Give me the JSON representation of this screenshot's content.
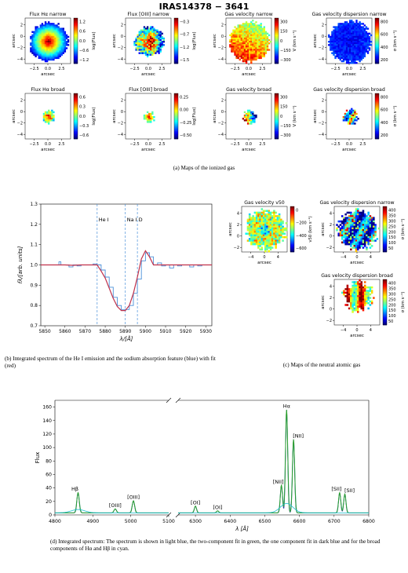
{
  "figure_title": "IRAS14378 − 3641",
  "panel_a": {
    "caption": "(a) Maps of the ionized gas",
    "maps": [
      {
        "title": "Flux Hα narrow",
        "cbar_label": "log(Flux)",
        "cbar_ticks": [
          "1.2",
          "0.6",
          "0.0",
          "−0.6",
          "−1.2"
        ],
        "palette": "jet",
        "show_ylabel": true
      },
      {
        "title": "Flux [OIII] narrow",
        "cbar_label": "log(Flux)",
        "cbar_ticks": [
          "−0.3",
          "−0.7",
          "−1.2",
          "−1.5"
        ],
        "palette": "jet",
        "show_ylabel": true
      },
      {
        "title": "Gas velocity narrow",
        "cbar_label": "V (km s⁻¹)",
        "cbar_ticks": [
          "300",
          "150",
          "0",
          "−150",
          "−300"
        ],
        "palette": "jet",
        "show_ylabel": true
      },
      {
        "title": "Gas velocity dispersion narrow",
        "cbar_label": "σ (km s⁻¹)",
        "cbar_ticks": [
          "800",
          "600",
          "400",
          "200"
        ],
        "palette": "jet",
        "show_ylabel": true
      },
      {
        "title": "Flux Hα broad",
        "cbar_label": "log(Flux)",
        "cbar_ticks": [
          "0.6",
          "0.3",
          "0.0",
          "−0.3",
          "−0.6"
        ],
        "palette": "jet",
        "show_ylabel": true
      },
      {
        "title": "Flux [OIII] broad",
        "cbar_label": "log(Flux)",
        "cbar_ticks": [
          "0.25",
          "0.00",
          "−0.25",
          "−0.50"
        ],
        "palette": "jet",
        "show_ylabel": true
      },
      {
        "title": "Gas velocity broad",
        "cbar_label": "V (km s⁻¹)",
        "cbar_ticks": [
          "300",
          "150",
          "0",
          "−150",
          "−300"
        ],
        "palette": "jet",
        "show_ylabel": true
      },
      {
        "title": "Gas velocity dispersion broad",
        "cbar_label": "σ (km s⁻¹)",
        "cbar_ticks": [
          "800",
          "600",
          "400",
          "200"
        ],
        "palette": "jet",
        "show_ylabel": true
      }
    ],
    "xlabel": "arcsec",
    "ylabel": "arcsec",
    "xticks": [
      "−2.5",
      "0.0",
      "2.5"
    ],
    "yticks": [
      "2",
      "0",
      "−2",
      "−4"
    ]
  },
  "panel_b": {
    "caption": "(b) Integrated spectrum of the He I emission and the sodium absorption feature (blue) with fit (red)",
    "xlabel": "λ/[Å]",
    "ylabel": "fλ/[arb. units]",
    "line_labels": [
      "He I",
      "Na I D"
    ],
    "colors": {
      "data": "#4a90d9",
      "fit": "#c0304a",
      "lines": "#4a90d9"
    }
  },
  "panel_c": {
    "caption": "(c) Maps of the neutral atomic gas",
    "maps": [
      {
        "title": "Gas velocity v50",
        "cbar_label": "v50 (km s⁻¹)",
        "cbar_ticks": [
          "0",
          "−200",
          "−400",
          "−600"
        ]
      },
      {
        "title": "Gas velocity dispersion narrow",
        "cbar_label": "σ (km s⁻¹)",
        "cbar_ticks": [
          "400",
          "350",
          "300",
          "250",
          "200",
          "150",
          "100",
          "50"
        ]
      },
      {
        "title": "Gas velocity dispersion broad",
        "cbar_label": "σ (km s⁻¹)",
        "cbar_ticks": [
          "400",
          "350",
          "300",
          "250",
          "200",
          "150",
          "100",
          "50"
        ]
      }
    ],
    "xlabel": "arcsec",
    "ylabel": "arcsec",
    "xticks": [
      "−4",
      "−2",
      "0",
      "2",
      "4"
    ],
    "yticks": [
      "4",
      "2",
      "0",
      "−2",
      "−4"
    ]
  },
  "panel_d": {
    "caption": "(d) Integrated spectrum: The spectrum is shown in light blue, the two-component fit in green, the one component fit in dark blue and for the broad components of Hα and Hβ in cyan.",
    "ylabel": "Flux",
    "xlabel": "λ [Å]",
    "yticks": [
      "0",
      "20",
      "40",
      "60",
      "80",
      "100",
      "120",
      "140",
      "160"
    ],
    "xticks_left": [
      "4800",
      "4900",
      "5000",
      "5100"
    ],
    "xticks_right": [
      "6300",
      "6400",
      "6500",
      "6600",
      "6700",
      "6800"
    ],
    "line_labels": [
      "Hβ",
      "[OIII]",
      "[OIII]",
      "[OI]",
      "[OI]",
      "[NII]",
      "Hα",
      "[NII]",
      "[SII]",
      "[SII]"
    ]
  },
  "chart_data": [
    {
      "type": "line",
      "title": "",
      "xlabel": "λ/[Å]",
      "ylabel": "fλ/[arb. units]",
      "xlim": [
        5848,
        5933
      ],
      "ylim": [
        0.7,
        1.3
      ],
      "xticks": [
        5850,
        5860,
        5870,
        5880,
        5890,
        5900,
        5910,
        5920,
        5930
      ],
      "yticks": [
        0.7,
        0.8,
        0.9,
        1.0,
        1.1,
        1.2,
        1.3
      ],
      "vlines": [
        5876,
        5890,
        5896
      ],
      "series": [
        {
          "name": "",
          "x": [
            5848,
            5856,
            5857,
            5858,
            5860,
            5862,
            5864,
            5866,
            5868,
            5870,
            5872,
            5874,
            5876,
            5878,
            5880,
            5882,
            5884,
            5886,
            5888,
            5890,
            5892,
            5894,
            5896,
            5898,
            5900,
            5902,
            5904,
            5906,
            5908,
            5910,
            5912,
            5914,
            5916,
            5918,
            5920,
            5922,
            5924,
            5926,
            5928,
            5930,
            5933
          ],
          "y": [
            1.0,
            1.0,
            1.015,
            1.0,
            1.0,
            0.99,
            1.0,
            0.995,
            1.0,
            1.0,
            1.0,
            1.005,
            1.0,
            0.975,
            0.94,
            0.89,
            0.84,
            0.8,
            0.78,
            0.78,
            0.8,
            0.86,
            0.93,
            1.02,
            1.06,
            1.04,
            1.0,
            1.01,
            0.995,
            1.0,
            0.985,
            1.0,
            0.995,
            1.0,
            1.0,
            0.99,
            1.0,
            0.995,
            1.0,
            1.0,
            1.0
          ]
        },
        {
          "name": "",
          "x": [
            5848,
            5856,
            5860,
            5864,
            5868,
            5872,
            5876,
            5878,
            5880,
            5882,
            5884,
            5886,
            5888,
            5890,
            5892,
            5894,
            5896,
            5898,
            5900,
            5902,
            5904,
            5906,
            5910,
            5916,
            5922,
            5928,
            5933
          ],
          "y": [
            1.0,
            1.0,
            1.0,
            0.998,
            1.0,
            1.0,
            1.0,
            0.97,
            0.935,
            0.885,
            0.835,
            0.795,
            0.775,
            0.775,
            0.8,
            0.86,
            0.94,
            1.03,
            1.07,
            1.04,
            1.0,
            1.0,
            1.0,
            1.0,
            1.0,
            1.0,
            1.0
          ]
        }
      ]
    },
    {
      "type": "line",
      "title": "",
      "xlabel": "λ [Å]",
      "ylabel": "Flux",
      "ylim": [
        0,
        170
      ],
      "x_segments": [
        [
          4800,
          5100
        ],
        [
          6250,
          6800
        ]
      ],
      "peaks": [
        {
          "line": "Hβ",
          "x": 4861,
          "y": 30
        },
        {
          "line": "[OIII]",
          "x": 4959,
          "y": 6
        },
        {
          "line": "[OIII]",
          "x": 5007,
          "y": 18
        },
        {
          "line": "[OI]",
          "x": 6300,
          "y": 10
        },
        {
          "line": "[OI]",
          "x": 6364,
          "y": 3
        },
        {
          "line": "[NII]",
          "x": 6548,
          "y": 41
        },
        {
          "line": "Hα",
          "x": 6563,
          "y": 153
        },
        {
          "line": "[NII]",
          "x": 6583,
          "y": 109
        },
        {
          "line": "[SII]",
          "x": 6716,
          "y": 30
        },
        {
          "line": "[SII]",
          "x": 6731,
          "y": 28
        }
      ]
    }
  ]
}
